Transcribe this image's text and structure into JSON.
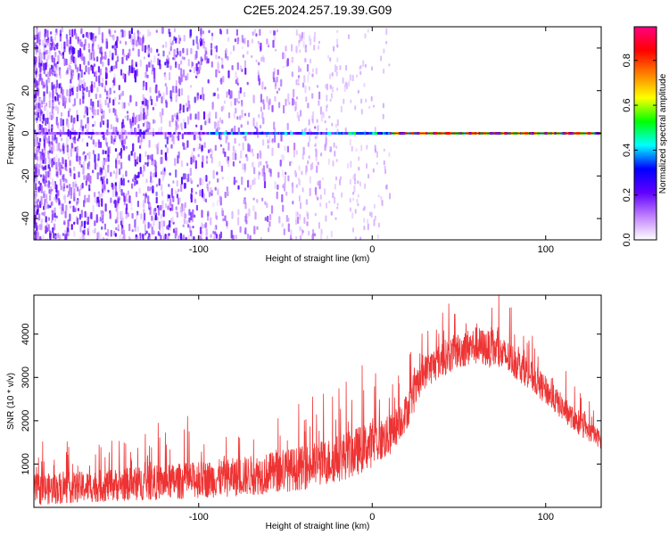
{
  "title": "C2E5.2024.257.19.39.G09",
  "chart_data": [
    {
      "type": "heatmap",
      "title": "C2E5.2024.257.19.39.G09",
      "xlabel": "Height of straight line (km)",
      "ylabel": "Frequency (Hz)",
      "xlim": [
        -195,
        132
      ],
      "ylim": [
        -50,
        50
      ],
      "x_ticks": [
        -100,
        0,
        100
      ],
      "y_ticks": [
        -40,
        -20,
        0,
        20,
        40
      ],
      "colorbar": {
        "label": "Normalized spectral amplitude",
        "range": [
          0.0,
          0.95
        ],
        "ticks": [
          0.0,
          0.2,
          0.4,
          0.6,
          0.8
        ],
        "colors": [
          "#ffffff",
          "#c080ff",
          "#6000ff",
          "#0000ff",
          "#00ffff",
          "#00ff00",
          "#ffff00",
          "#ff8000",
          "#ff0000",
          "#ff0080"
        ]
      },
      "signal_line": {
        "freq_hz": 0,
        "features": [
          {
            "x_range": [
              -195,
              -30
            ],
            "max_amplitude": 0.25,
            "description_scatter": true
          },
          {
            "x_range": [
              -95,
              -15
            ],
            "max_amplitude": 0.45
          },
          {
            "x_range": [
              -15,
              10
            ],
            "max_amplitude": 0.55
          },
          {
            "x_range": [
              10,
              132
            ],
            "max_amplitude": 0.85
          }
        ]
      },
      "grid": false
    },
    {
      "type": "line",
      "xlabel": "Height of straight line (km)",
      "ylabel": "SNR (10 * v/v)",
      "xlim": [
        -195,
        132
      ],
      "ylim": [
        0,
        4900
      ],
      "x_ticks": [
        -100,
        0,
        100
      ],
      "y_ticks": [
        1000,
        2000,
        3000,
        4000
      ],
      "color": "#ee3333",
      "series_envelope": {
        "x": [
          -195,
          -170,
          -140,
          -110,
          -80,
          -60,
          -40,
          -25,
          -10,
          0,
          10,
          20,
          30,
          40,
          50,
          60,
          70,
          80,
          90,
          100,
          110,
          120,
          132
        ],
        "mean": [
          300,
          350,
          420,
          480,
          560,
          640,
          760,
          900,
          1100,
          1300,
          1500,
          2100,
          3000,
          3300,
          3500,
          3600,
          3500,
          3300,
          3000,
          2600,
          2200,
          1800,
          1500
        ],
        "spread": [
          600,
          600,
          650,
          700,
          750,
          800,
          850,
          900,
          950,
          900,
          800,
          700,
          650,
          700,
          700,
          750,
          700,
          650,
          600,
          550,
          500,
          400,
          350
        ]
      },
      "grid": false
    }
  ]
}
